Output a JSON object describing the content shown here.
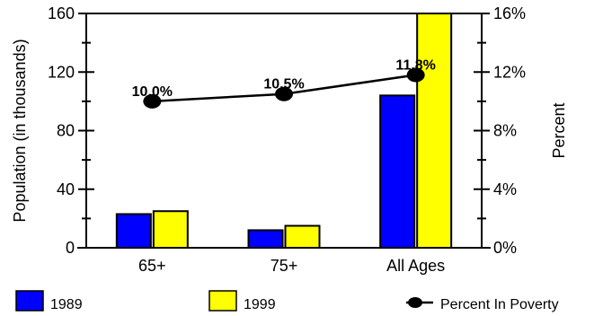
{
  "chart_data": {
    "type": "bar",
    "categories": [
      "65+",
      "75+",
      "All Ages"
    ],
    "series": [
      {
        "name": "1989",
        "values": [
          23,
          12,
          104
        ],
        "color": "#0000ff",
        "axis": "left"
      },
      {
        "name": "1999",
        "values": [
          25,
          15,
          160
        ],
        "color": "#ffff00",
        "axis": "left"
      }
    ],
    "line_series": {
      "name": "Percent In Poverty",
      "values": [
        10.0,
        10.5,
        11.8
      ],
      "labels": [
        "10.0%",
        "10.5%",
        "11.8%"
      ],
      "axis": "right",
      "color": "#000000"
    },
    "ylabel": "Population (in thousands)",
    "ylabel_right": "Percent",
    "ylim": [
      0,
      160
    ],
    "ylim_right": [
      0,
      16
    ],
    "yticks": [
      "0",
      "40",
      "80",
      "120",
      "160"
    ],
    "yticks_right": [
      "0%",
      "4%",
      "8%",
      "12%",
      "16%"
    ],
    "legend_position": "bottom"
  }
}
